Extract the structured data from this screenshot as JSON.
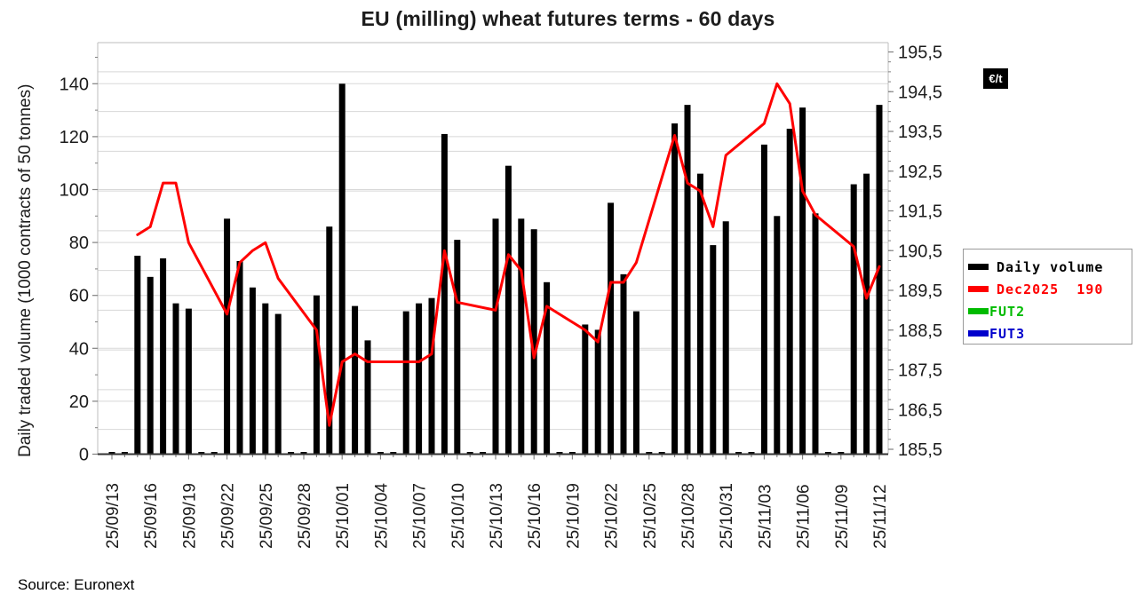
{
  "title": "EU (milling) wheat futures terms - 60 days",
  "source": "Source: Euronext",
  "unit_badge": "€/t",
  "legend": [
    {
      "label": "Daily volume",
      "color": "#000000",
      "text_color": "#000000"
    },
    {
      "label": "Dec2025  190",
      "color": "#ff0000",
      "text_color": "#ff0000"
    },
    {
      "label": "FUT2",
      "color": "#00bb00",
      "text_color": "#00bb00"
    },
    {
      "label": "FUT3",
      "color": "#0000cc",
      "text_color": "#0000cc"
    }
  ],
  "chart_data": {
    "type": "bar",
    "title": "EU (milling) wheat futures terms - 60 days",
    "xlabel": "",
    "ylabel_left": "Daily traded volume (1000 contracts of 50 tonnes)",
    "ylabel_right": "€/t",
    "grid": "horizontal",
    "legend_position": "right",
    "categories": [
      "25/09/13",
      "25/09/14",
      "25/09/15",
      "25/09/16",
      "25/09/17",
      "25/09/18",
      "25/09/19",
      "25/09/20",
      "25/09/21",
      "25/09/22",
      "25/09/23",
      "25/09/24",
      "25/09/25",
      "25/09/26",
      "25/09/27",
      "25/09/28",
      "25/09/29",
      "25/09/30",
      "25/10/01",
      "25/10/02",
      "25/10/03",
      "25/10/04",
      "25/10/05",
      "25/10/06",
      "25/10/07",
      "25/10/08",
      "25/10/09",
      "25/10/10",
      "25/10/11",
      "25/10/12",
      "25/10/13",
      "25/10/14",
      "25/10/15",
      "25/10/16",
      "25/10/17",
      "25/10/18",
      "25/10/19",
      "25/10/20",
      "25/10/21",
      "25/10/22",
      "25/10/23",
      "25/10/24",
      "25/10/25",
      "25/10/26",
      "25/10/27",
      "25/10/28",
      "25/10/29",
      "25/10/30",
      "25/10/31",
      "25/11/01",
      "25/11/02",
      "25/11/03",
      "25/11/04",
      "25/11/05",
      "25/11/06",
      "25/11/07",
      "25/11/08",
      "25/11/09",
      "25/11/10",
      "25/11/11",
      "25/11/12"
    ],
    "x_tick_labels": [
      "25/09/13",
      "25/09/16",
      "25/09/19",
      "25/09/22",
      "25/09/25",
      "25/09/28",
      "25/10/01",
      "25/10/04",
      "25/10/07",
      "25/10/10",
      "25/10/13",
      "25/10/16",
      "25/10/19",
      "25/10/22",
      "25/10/25",
      "25/10/28",
      "25/10/31",
      "25/11/03",
      "25/11/06",
      "25/11/09",
      "25/11/12"
    ],
    "x_label_every": 3,
    "series": [
      {
        "name": "Daily volume",
        "type": "bar",
        "axis": "left",
        "color": "#000000",
        "values": [
          0,
          0,
          75,
          67,
          74,
          57,
          55,
          0,
          0,
          89,
          73,
          63,
          57,
          53,
          0,
          0,
          60,
          86,
          140,
          56,
          43,
          0,
          0,
          54,
          57,
          59,
          121,
          81,
          0,
          0,
          89,
          109,
          89,
          85,
          65,
          0,
          0,
          49,
          47,
          95,
          68,
          54,
          0,
          0,
          125,
          132,
          106,
          79,
          88,
          0,
          0,
          117,
          90,
          123,
          131,
          91,
          0,
          0,
          102,
          106,
          132
        ]
      },
      {
        "name": "Dec2025  190",
        "type": "line",
        "axis": "right",
        "color": "#ff0000",
        "values": [
          null,
          null,
          190.9,
          191.1,
          192.2,
          192.2,
          190.7,
          null,
          null,
          188.9,
          190.2,
          190.5,
          190.7,
          189.8,
          null,
          null,
          188.5,
          186.1,
          187.7,
          187.9,
          187.7,
          null,
          null,
          187.7,
          187.7,
          187.9,
          190.5,
          189.2,
          null,
          null,
          189.0,
          190.4,
          190.0,
          187.8,
          189.1,
          null,
          null,
          188.5,
          188.2,
          189.7,
          189.7,
          190.2,
          null,
          null,
          193.4,
          192.2,
          192.0,
          191.1,
          192.9,
          null,
          null,
          193.7,
          194.7,
          194.2,
          192.0,
          191.4,
          null,
          null,
          190.6,
          189.3,
          190.1
        ]
      },
      {
        "name": "FUT2",
        "type": "line",
        "axis": "right",
        "color": "#00bb00",
        "values": []
      },
      {
        "name": "FUT3",
        "type": "line",
        "axis": "right",
        "color": "#0000cc",
        "values": []
      }
    ],
    "y_left": {
      "min": 0,
      "max": 155,
      "ticks": [
        0,
        20,
        40,
        60,
        80,
        100,
        120,
        140
      ],
      "minor_step": 10
    },
    "y_right": {
      "min": 185.5,
      "max": 195.5,
      "tick_values": [
        185.5,
        186.5,
        187.5,
        188.5,
        189.5,
        190.5,
        191.5,
        192.5,
        193.5,
        194.5,
        195.5
      ],
      "tick_labels": [
        "185,5",
        "186,5",
        "187,5",
        "188,5",
        "189,5",
        "190,5",
        "191,5",
        "192,5",
        "193,5",
        "194,5",
        "195,5"
      ],
      "minor_step": 0.25,
      "gridline_values": [
        186,
        187,
        188,
        189,
        190,
        191,
        192,
        193,
        194,
        195
      ]
    }
  },
  "colors": {
    "grid": "#d8d8d8",
    "axis_frame": "#bdbdbd",
    "x_axis_line": "#333333",
    "tick": "#808080",
    "label": "#1c1c1c"
  }
}
